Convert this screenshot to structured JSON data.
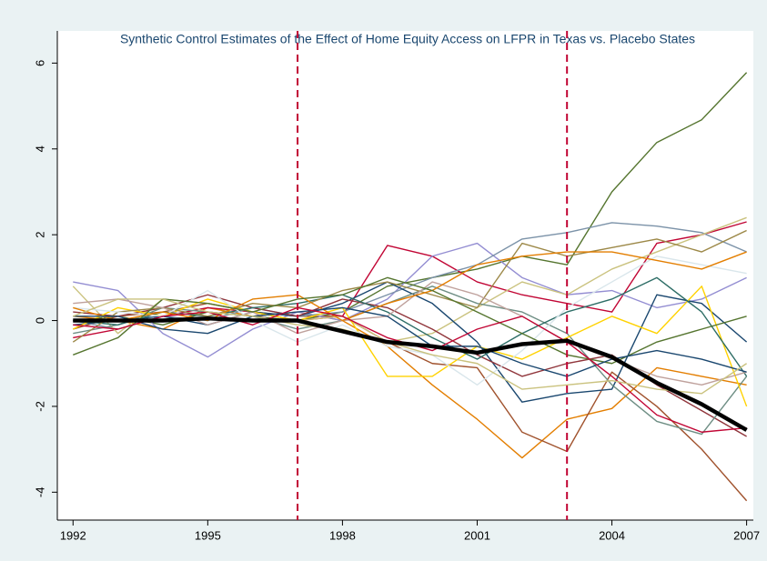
{
  "chart_data": {
    "type": "line",
    "title": "Synthetic Control Estimates of the Effect of Home Equity Access on LFPR in Texas vs. Placebo States",
    "x": [
      1992,
      1993,
      1994,
      1995,
      1996,
      1997,
      1998,
      1999,
      2000,
      2001,
      2002,
      2003,
      2004,
      2005,
      2006,
      2007
    ],
    "xlim": [
      1991.65,
      2007.15
    ],
    "xticks": [
      1992,
      1995,
      1998,
      2001,
      2004,
      2007
    ],
    "ylim": [
      -4.65,
      6.75
    ],
    "yticks": [
      -4,
      -2,
      0,
      2,
      4,
      6
    ],
    "grid": false,
    "vlines": {
      "values": [
        1997,
        2003
      ],
      "color": "#c10534"
    },
    "treated": {
      "color": "#000000",
      "values": [
        0,
        0,
        0,
        0.05,
        0,
        0,
        -0.25,
        -0.5,
        -0.6,
        -0.75,
        -0.55,
        -0.47,
        -0.85,
        -1.45,
        -1.95,
        -2.55
      ]
    },
    "series": [
      {
        "color": "#55752f",
        "values": [
          0,
          0.1,
          -0.1,
          0.2,
          0.1,
          0,
          0.2,
          0.8,
          1.0,
          1.2,
          1.5,
          1.3,
          3.0,
          4.15,
          4.68,
          5.78
        ]
      },
      {
        "color": "#e37e00",
        "values": [
          0.1,
          0,
          -0.2,
          0.3,
          0.1,
          0.2,
          0,
          -0.6,
          -1.5,
          -2.3,
          -3.2,
          -2.3,
          -2.05,
          -1.1,
          -1.3,
          -1.5
        ]
      },
      {
        "color": "#a0522d",
        "values": [
          -0.2,
          0.1,
          0.2,
          0.4,
          0.2,
          0.1,
          0.1,
          -0.5,
          -1.0,
          -1.1,
          -2.6,
          -3.05,
          -1.2,
          -2.0,
          -3.0,
          -4.2
        ]
      },
      {
        "color": "#c10534",
        "values": [
          -0.4,
          -0.2,
          0.1,
          0.3,
          0.2,
          0,
          0.1,
          1.75,
          1.5,
          0.9,
          0.6,
          0.4,
          0.2,
          1.8,
          2.0,
          2.3
        ]
      },
      {
        "color": "#938dd2",
        "values": [
          0.9,
          0.7,
          -0.3,
          -0.85,
          -0.2,
          0.2,
          0,
          0.5,
          1.5,
          1.8,
          1.0,
          0.6,
          0.7,
          0.3,
          0.5,
          1.0
        ]
      },
      {
        "color": "#7b92a8",
        "values": [
          0,
          -0.2,
          0.1,
          0,
          0.3,
          0.1,
          0.2,
          0.6,
          1.0,
          1.3,
          1.9,
          2.05,
          2.28,
          2.2,
          2.05,
          1.6
        ]
      },
      {
        "color": "#cac27e",
        "values": [
          0.8,
          -0.3,
          0.5,
          0.4,
          0.2,
          0,
          0.1,
          -0.5,
          -0.3,
          0.3,
          0.9,
          0.6,
          1.2,
          1.6,
          2.0,
          2.4
        ]
      },
      {
        "color": "#1a476f",
        "values": [
          -0.1,
          0,
          0.1,
          -0.1,
          0.2,
          0.1,
          0.4,
          0.9,
          0.4,
          -0.5,
          -1.9,
          -1.7,
          -1.6,
          0.6,
          0.4,
          -0.5
        ]
      },
      {
        "color": "#90353b",
        "values": [
          0.2,
          0.1,
          0.3,
          0.6,
          0.3,
          0.1,
          0.5,
          0.3,
          -0.2,
          -0.8,
          -1.3,
          -1.0,
          -0.8,
          -1.5,
          -2.1,
          -2.7
        ]
      },
      {
        "color": "#6e8e84",
        "values": [
          -0.3,
          -0.1,
          0.3,
          0.2,
          0.1,
          -0.2,
          0,
          0.4,
          0.8,
          0.4,
          0.2,
          -0.3,
          -1.5,
          -2.35,
          -2.65,
          -1.3
        ]
      },
      {
        "color": "#ffd200",
        "values": [
          -0.2,
          0.3,
          0.1,
          0.5,
          0.2,
          0,
          0.3,
          -1.3,
          -1.3,
          -0.6,
          -0.9,
          -0.4,
          0.1,
          -0.3,
          0.8,
          -2.0
        ]
      },
      {
        "color": "#2d6d66",
        "values": [
          0,
          -0.1,
          0.2,
          0.1,
          0.3,
          0.4,
          0.6,
          0.2,
          -0.4,
          -0.9,
          -0.3,
          0.2,
          0.5,
          1.0,
          0.2,
          -1.3
        ]
      },
      {
        "color": "#9c8847",
        "values": [
          -0.5,
          0.2,
          0.3,
          0.1,
          0.4,
          0.3,
          0.7,
          0.9,
          0.6,
          0.3,
          1.8,
          1.5,
          1.7,
          1.9,
          1.6,
          2.1
        ]
      },
      {
        "color": "#bfa19c",
        "values": [
          0.4,
          0.5,
          0.3,
          -0.1,
          0.2,
          -0.3,
          0,
          0.1,
          0.9,
          0.6,
          0.1,
          -0.5,
          -0.9,
          -1.3,
          -1.5,
          -1.2
        ]
      },
      {
        "color": "#d9e6eb",
        "values": [
          0.3,
          0.2,
          0.1,
          0.7,
          0,
          -0.5,
          -0.1,
          -0.6,
          -0.8,
          -1.5,
          -0.7,
          0.3,
          0.9,
          1.5,
          1.3,
          1.1
        ]
      },
      {
        "color": "#e37e00",
        "values": [
          0.3,
          0,
          0.2,
          0,
          0.5,
          0.6,
          0,
          0.4,
          0.7,
          1.3,
          1.5,
          1.6,
          1.6,
          1.4,
          1.2,
          1.6
        ]
      },
      {
        "color": "#55752f",
        "values": [
          -0.8,
          -0.4,
          0.5,
          0.4,
          0.2,
          0.5,
          0.6,
          1.0,
          0.7,
          0.2,
          -0.3,
          -0.8,
          -1.0,
          -0.5,
          -0.2,
          0.1
        ]
      },
      {
        "color": "#1a476f",
        "values": [
          0.1,
          0.1,
          -0.2,
          -0.3,
          0.1,
          0.2,
          0.3,
          0.1,
          -0.6,
          -0.6,
          -1.0,
          -1.3,
          -0.9,
          -0.7,
          -0.9,
          -1.2
        ]
      },
      {
        "color": "#c10534",
        "values": [
          -0.1,
          -0.2,
          0.1,
          0.2,
          -0.1,
          0.3,
          0.1,
          -0.4,
          -0.7,
          -0.2,
          0.1,
          -0.5,
          -1.3,
          -2.2,
          -2.6,
          -2.5
        ]
      },
      {
        "color": "#cac27e",
        "values": [
          0.1,
          0.5,
          0.5,
          0.2,
          0.1,
          -0.1,
          -0.2,
          -0.5,
          -0.8,
          -1.0,
          -1.6,
          -1.5,
          -1.4,
          -1.6,
          -1.7,
          -1.0
        ]
      }
    ]
  }
}
